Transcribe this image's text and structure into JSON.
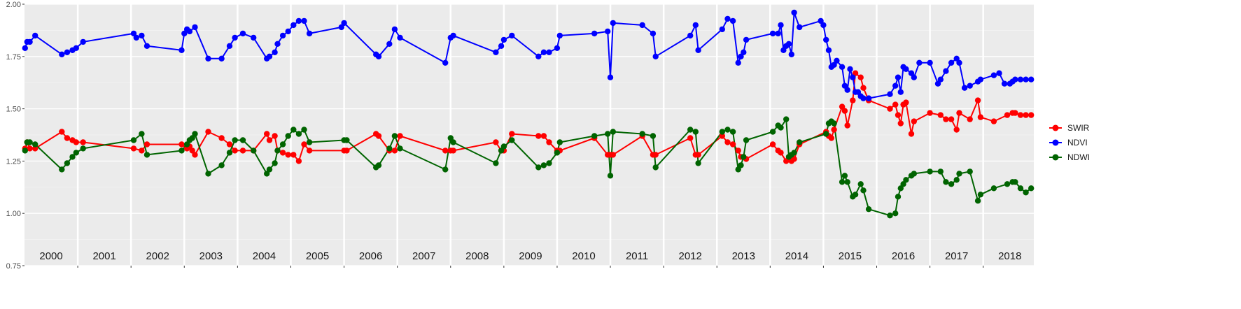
{
  "chart_data": {
    "type": "line",
    "title": "",
    "xlabel": "",
    "ylabel": "",
    "xlim": [
      2000.0,
      2018.95
    ],
    "ylim": [
      0.75,
      2.0
    ],
    "yticks": [
      0.75,
      1.0,
      1.25,
      1.5,
      1.75,
      2.0
    ],
    "ytick_labels": [
      "0.75",
      "1.00",
      "1.25",
      "1.50",
      "1.75",
      "2.00"
    ],
    "year_labels": [
      "2000",
      "2001",
      "2002",
      "2003",
      "2004",
      "2005",
      "2006",
      "2007",
      "2008",
      "2009",
      "2010",
      "2011",
      "2012",
      "2013",
      "2014",
      "2015",
      "2016",
      "2017",
      "2018"
    ],
    "grid": true,
    "legend_position": "right",
    "series": [
      {
        "name": "SWIR",
        "color": "#ff0000",
        "x": [
          2000.01,
          2000.05,
          2000.1,
          2000.2,
          2000.7,
          2000.8,
          2000.9,
          2000.97,
          2001.1,
          2002.05,
          2002.2,
          2002.3,
          2002.95,
          2003.05,
          2003.1,
          2003.15,
          2003.2,
          2003.45,
          2003.7,
          2003.85,
          2003.95,
          2004.1,
          2004.3,
          2004.55,
          2004.6,
          2004.7,
          2004.75,
          2004.85,
          2004.95,
          2005.05,
          2005.15,
          2005.25,
          2005.35,
          2006.0,
          2006.05,
          2006.6,
          2006.65,
          2006.85,
          2006.95,
          2007.05,
          2007.9,
          2008.0,
          2008.05,
          2008.85,
          2008.95,
          2009.0,
          2009.15,
          2009.65,
          2009.75,
          2009.85,
          2010.0,
          2010.05,
          2010.7,
          2010.95,
          2011.0,
          2011.05,
          2011.6,
          2011.8,
          2011.85,
          2012.5,
          2012.6,
          2012.65,
          2013.1,
          2013.2,
          2013.3,
          2013.4,
          2013.45,
          2013.5,
          2013.55,
          2014.05,
          2014.15,
          2014.2,
          2014.3,
          2014.35,
          2014.4,
          2014.45,
          2014.55,
          2015.05,
          2015.1,
          2015.15,
          2015.2,
          2015.35,
          2015.4,
          2015.45,
          2015.55,
          2015.6,
          2015.7,
          2015.75,
          2015.85,
          2016.25,
          2016.35,
          2016.4,
          2016.45,
          2016.5,
          2016.55,
          2016.65,
          2016.7,
          2017.0,
          2017.2,
          2017.3,
          2017.4,
          2017.5,
          2017.55,
          2017.75,
          2017.9,
          2017.95,
          2018.2,
          2018.45,
          2018.55,
          2018.6,
          2018.7,
          2018.8,
          2018.9
        ],
        "values": [
          1.31,
          1.34,
          1.31,
          1.31,
          1.39,
          1.36,
          1.35,
          1.34,
          1.34,
          1.31,
          1.3,
          1.33,
          1.33,
          1.31,
          1.32,
          1.3,
          1.28,
          1.39,
          1.36,
          1.33,
          1.3,
          1.3,
          1.3,
          1.38,
          1.35,
          1.37,
          1.3,
          1.29,
          1.28,
          1.28,
          1.25,
          1.33,
          1.3,
          1.3,
          1.3,
          1.38,
          1.37,
          1.3,
          1.3,
          1.37,
          1.3,
          1.3,
          1.3,
          1.34,
          1.3,
          1.3,
          1.38,
          1.37,
          1.37,
          1.34,
          1.3,
          1.3,
          1.36,
          1.28,
          1.28,
          1.28,
          1.37,
          1.28,
          1.28,
          1.36,
          1.28,
          1.28,
          1.37,
          1.34,
          1.33,
          1.3,
          1.27,
          1.27,
          1.26,
          1.33,
          1.3,
          1.29,
          1.25,
          1.27,
          1.25,
          1.26,
          1.33,
          1.39,
          1.37,
          1.36,
          1.4,
          1.51,
          1.49,
          1.42,
          1.54,
          1.67,
          1.65,
          1.6,
          1.54,
          1.5,
          1.52,
          1.47,
          1.43,
          1.52,
          1.53,
          1.38,
          1.44,
          1.48,
          1.47,
          1.45,
          1.45,
          1.4,
          1.48,
          1.45,
          1.54,
          1.46,
          1.44,
          1.47,
          1.48,
          1.48,
          1.47,
          1.47,
          1.47
        ]
      },
      {
        "name": "NDVI",
        "color": "#0000ff",
        "x": [
          2000.01,
          2000.05,
          2000.1,
          2000.2,
          2000.7,
          2000.8,
          2000.9,
          2000.97,
          2001.1,
          2002.05,
          2002.1,
          2002.2,
          2002.3,
          2002.95,
          2003.0,
          2003.05,
          2003.1,
          2003.2,
          2003.45,
          2003.7,
          2003.85,
          2003.95,
          2004.1,
          2004.3,
          2004.55,
          2004.6,
          2004.7,
          2004.75,
          2004.85,
          2004.95,
          2005.05,
          2005.15,
          2005.25,
          2005.35,
          2005.95,
          2006.0,
          2006.6,
          2006.65,
          2006.85,
          2006.95,
          2007.05,
          2007.9,
          2008.0,
          2008.05,
          2008.85,
          2008.95,
          2009.0,
          2009.15,
          2009.65,
          2009.75,
          2009.85,
          2010.0,
          2010.05,
          2010.7,
          2010.95,
          2011.0,
          2011.05,
          2011.6,
          2011.8,
          2011.85,
          2012.5,
          2012.6,
          2012.65,
          2013.1,
          2013.2,
          2013.3,
          2013.4,
          2013.45,
          2013.5,
          2013.55,
          2014.05,
          2014.15,
          2014.2,
          2014.25,
          2014.3,
          2014.35,
          2014.4,
          2014.45,
          2014.55,
          2014.95,
          2015.0,
          2015.05,
          2015.1,
          2015.15,
          2015.2,
          2015.25,
          2015.35,
          2015.4,
          2015.45,
          2015.5,
          2015.55,
          2015.6,
          2015.65,
          2015.7,
          2015.75,
          2015.85,
          2016.25,
          2016.35,
          2016.4,
          2016.45,
          2016.5,
          2016.55,
          2016.65,
          2016.7,
          2016.8,
          2017.0,
          2017.15,
          2017.2,
          2017.3,
          2017.4,
          2017.5,
          2017.55,
          2017.65,
          2017.75,
          2017.9,
          2017.95,
          2018.2,
          2018.3,
          2018.4,
          2018.5,
          2018.55,
          2018.6,
          2018.7,
          2018.8,
          2018.9
        ],
        "values": [
          1.79,
          1.82,
          1.82,
          1.85,
          1.76,
          1.77,
          1.78,
          1.79,
          1.82,
          1.86,
          1.84,
          1.85,
          1.8,
          1.78,
          1.86,
          1.88,
          1.87,
          1.89,
          1.74,
          1.74,
          1.8,
          1.84,
          1.86,
          1.84,
          1.74,
          1.75,
          1.77,
          1.81,
          1.85,
          1.87,
          1.9,
          1.92,
          1.92,
          1.86,
          1.89,
          1.91,
          1.76,
          1.75,
          1.81,
          1.88,
          1.84,
          1.72,
          1.84,
          1.85,
          1.77,
          1.8,
          1.83,
          1.85,
          1.75,
          1.77,
          1.77,
          1.79,
          1.85,
          1.86,
          1.87,
          1.65,
          1.91,
          1.9,
          1.86,
          1.75,
          1.85,
          1.9,
          1.78,
          1.88,
          1.93,
          1.92,
          1.72,
          1.75,
          1.77,
          1.83,
          1.86,
          1.86,
          1.9,
          1.78,
          1.8,
          1.81,
          1.76,
          1.96,
          1.89,
          1.92,
          1.9,
          1.83,
          1.78,
          1.7,
          1.71,
          1.73,
          1.7,
          1.61,
          1.59,
          1.69,
          1.65,
          1.58,
          1.58,
          1.56,
          1.55,
          1.55,
          1.57,
          1.61,
          1.65,
          1.58,
          1.7,
          1.69,
          1.67,
          1.65,
          1.72,
          1.72,
          1.62,
          1.64,
          1.68,
          1.72,
          1.74,
          1.72,
          1.6,
          1.61,
          1.63,
          1.64,
          1.66,
          1.67,
          1.62,
          1.62,
          1.63,
          1.64,
          1.64,
          1.64,
          1.64
        ]
      },
      {
        "name": "NDWI",
        "color": "#006400",
        "x": [
          2000.01,
          2000.05,
          2000.1,
          2000.2,
          2000.7,
          2000.8,
          2000.9,
          2000.97,
          2001.1,
          2002.05,
          2002.2,
          2002.3,
          2002.95,
          2003.05,
          2003.1,
          2003.15,
          2003.2,
          2003.45,
          2003.7,
          2003.85,
          2003.95,
          2004.1,
          2004.3,
          2004.55,
          2004.6,
          2004.7,
          2004.75,
          2004.85,
          2004.95,
          2005.05,
          2005.15,
          2005.25,
          2005.35,
          2006.0,
          2006.05,
          2006.6,
          2006.65,
          2006.85,
          2006.95,
          2007.05,
          2007.9,
          2008.0,
          2008.05,
          2008.85,
          2008.95,
          2009.0,
          2009.15,
          2009.65,
          2009.75,
          2009.85,
          2010.0,
          2010.05,
          2010.7,
          2010.95,
          2011.0,
          2011.05,
          2011.6,
          2011.8,
          2011.85,
          2012.5,
          2012.6,
          2012.65,
          2013.1,
          2013.2,
          2013.3,
          2013.4,
          2013.45,
          2013.5,
          2013.55,
          2014.05,
          2014.15,
          2014.2,
          2014.3,
          2014.35,
          2014.4,
          2014.45,
          2014.55,
          2015.05,
          2015.1,
          2015.15,
          2015.2,
          2015.35,
          2015.4,
          2015.45,
          2015.55,
          2015.6,
          2015.7,
          2015.75,
          2015.85,
          2016.25,
          2016.35,
          2016.4,
          2016.45,
          2016.5,
          2016.55,
          2016.65,
          2016.7,
          2017.0,
          2017.2,
          2017.3,
          2017.4,
          2017.5,
          2017.55,
          2017.75,
          2017.9,
          2017.95,
          2018.2,
          2018.45,
          2018.55,
          2018.6,
          2018.7,
          2018.8,
          2018.9
        ],
        "values": [
          1.3,
          1.34,
          1.34,
          1.33,
          1.21,
          1.24,
          1.27,
          1.29,
          1.31,
          1.35,
          1.38,
          1.28,
          1.3,
          1.33,
          1.35,
          1.36,
          1.38,
          1.19,
          1.23,
          1.29,
          1.35,
          1.35,
          1.3,
          1.19,
          1.21,
          1.24,
          1.3,
          1.33,
          1.37,
          1.4,
          1.38,
          1.4,
          1.34,
          1.35,
          1.35,
          1.22,
          1.23,
          1.31,
          1.37,
          1.31,
          1.21,
          1.36,
          1.34,
          1.24,
          1.3,
          1.32,
          1.35,
          1.22,
          1.23,
          1.24,
          1.29,
          1.34,
          1.37,
          1.38,
          1.18,
          1.39,
          1.38,
          1.37,
          1.22,
          1.4,
          1.39,
          1.24,
          1.39,
          1.4,
          1.39,
          1.21,
          1.23,
          1.27,
          1.35,
          1.39,
          1.42,
          1.41,
          1.45,
          1.27,
          1.28,
          1.29,
          1.34,
          1.38,
          1.43,
          1.44,
          1.43,
          1.15,
          1.18,
          1.15,
          1.08,
          1.09,
          1.14,
          1.11,
          1.02,
          0.99,
          1.0,
          1.08,
          1.12,
          1.14,
          1.16,
          1.18,
          1.19,
          1.2,
          1.2,
          1.15,
          1.14,
          1.16,
          1.19,
          1.2,
          1.06,
          1.09,
          1.12,
          1.14,
          1.15,
          1.15,
          1.12,
          1.1,
          1.12
        ]
      }
    ]
  }
}
